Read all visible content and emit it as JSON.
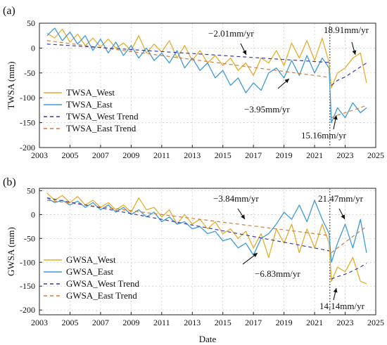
{
  "figure": {
    "xlabel": "Date"
  },
  "colors": {
    "west": "#e6ac2c",
    "east": "#3d9ad8",
    "west_trend": "#3a3aa8",
    "east_trend": "#d27a3a",
    "grid": "#c8c8c8",
    "dashed_vline": "#555555"
  },
  "chart_data": [
    {
      "type": "line",
      "panel": "(a)",
      "ylabel": "TWSA (mm)",
      "xlim": [
        2003,
        2025
      ],
      "ylim": [
        -200,
        50
      ],
      "xticks": [
        2003,
        2005,
        2007,
        2009,
        2011,
        2013,
        2015,
        2017,
        2019,
        2021,
        2023,
        2025
      ],
      "yticks": [
        50,
        0,
        -50,
        -100,
        -150,
        -200
      ],
      "break_year": 2022,
      "legend": [
        "TWSA_West",
        "TWSA_East",
        "TWSA_West Trend",
        "TWSA_East Trend"
      ],
      "legend_position": "lower-left",
      "annotations": [
        "−2.01mm/yr",
        "−3.95mm/yr",
        "18.91mm/yr",
        "15.16mm/yr"
      ],
      "grid": true,
      "x": [
        2003.5,
        2004.0,
        2004.5,
        2005.0,
        2005.5,
        2006.0,
        2006.5,
        2007.0,
        2007.5,
        2008.0,
        2008.5,
        2009.0,
        2009.5,
        2010.0,
        2010.5,
        2011.0,
        2011.5,
        2012.0,
        2012.5,
        2013.0,
        2013.5,
        2014.0,
        2014.5,
        2015.0,
        2015.5,
        2016.0,
        2016.5,
        2017.0,
        2017.5,
        2018.0,
        2018.5,
        2019.0,
        2019.5,
        2020.0,
        2020.5,
        2021.0,
        2021.5,
        2021.95,
        2022.1,
        2022.5,
        2023.0,
        2023.5,
        2024.0,
        2024.4
      ],
      "series": [
        {
          "name": "TWSA_West",
          "values": [
            30,
            20,
            38,
            12,
            28,
            5,
            20,
            2,
            18,
            0,
            10,
            -5,
            25,
            -10,
            8,
            -8,
            15,
            -20,
            5,
            -25,
            -5,
            -30,
            -15,
            -35,
            -20,
            -45,
            -30,
            -55,
            -20,
            -30,
            -5,
            -35,
            10,
            -20,
            15,
            -25,
            20,
            -30,
            -80,
            -50,
            -40,
            -20,
            -10,
            -70
          ]
        },
        {
          "name": "TWSA_East",
          "values": [
            25,
            40,
            15,
            32,
            8,
            25,
            -5,
            18,
            -10,
            12,
            -15,
            5,
            -20,
            0,
            -25,
            -10,
            -30,
            -5,
            -40,
            -20,
            -45,
            -30,
            -60,
            -45,
            -75,
            -60,
            -90,
            -70,
            -85,
            -50,
            -40,
            -60,
            -25,
            -55,
            -15,
            -50,
            -20,
            -40,
            -150,
            -120,
            -140,
            -110,
            -130,
            -120
          ]
        },
        {
          "name": "TWSA_West Trend",
          "values": [
            8,
            7,
            6,
            5,
            4,
            3,
            2,
            1,
            0,
            -1,
            -2,
            -3,
            -4,
            -5,
            -6,
            -7,
            -8,
            -9,
            -10,
            -11,
            -12,
            -13,
            -14,
            -15,
            -16,
            -17,
            -18,
            -19,
            -20,
            -21,
            -22,
            -23,
            -24,
            -25,
            -26,
            -27,
            -28,
            -29,
            -75,
            -65,
            -58,
            -48,
            -38,
            -30
          ]
        },
        {
          "name": "TWSA_East Trend",
          "values": [
            15,
            13,
            11,
            9,
            7,
            5,
            3,
            1,
            -1,
            -3,
            -5,
            -7,
            -9,
            -11,
            -13,
            -15,
            -17,
            -19,
            -21,
            -23,
            -25,
            -27,
            -29,
            -31,
            -33,
            -35,
            -37,
            -39,
            -41,
            -43,
            -45,
            -47,
            -49,
            -51,
            -53,
            -55,
            -57,
            -59,
            -140,
            -135,
            -130,
            -125,
            -120,
            -115
          ]
        }
      ]
    },
    {
      "type": "line",
      "panel": "(b)",
      "ylabel": "GWSA (mm)",
      "xlim": [
        2003,
        2025
      ],
      "ylim": [
        -210,
        55
      ],
      "xticks": [
        2003,
        2005,
        2007,
        2009,
        2011,
        2013,
        2015,
        2017,
        2019,
        2021,
        2023,
        2025
      ],
      "yticks": [
        50,
        0,
        -50,
        -100,
        -150,
        -200
      ],
      "break_year": 2022,
      "legend": [
        "GWSA_West",
        "GWSA_East",
        "GWSA_West Trend",
        "GWSA_East Trend"
      ],
      "legend_position": "lower-left",
      "annotations": [
        "−3.84mm/yr",
        "−6.83mm/yr",
        "21.47mm/yr",
        "14.14mm/yr"
      ],
      "grid": true,
      "x": [
        2003.5,
        2004.0,
        2004.5,
        2005.0,
        2005.5,
        2006.0,
        2006.5,
        2007.0,
        2007.5,
        2008.0,
        2008.5,
        2009.0,
        2009.5,
        2010.0,
        2010.5,
        2011.0,
        2011.5,
        2012.0,
        2012.5,
        2013.0,
        2013.5,
        2014.0,
        2014.5,
        2015.0,
        2015.5,
        2016.0,
        2016.5,
        2017.0,
        2017.5,
        2018.0,
        2018.5,
        2019.0,
        2019.5,
        2020.0,
        2020.5,
        2021.0,
        2021.5,
        2021.95,
        2022.1,
        2022.5,
        2023.0,
        2023.5,
        2024.0,
        2024.4
      ],
      "series": [
        {
          "name": "GWSA_West",
          "values": [
            45,
            30,
            40,
            25,
            38,
            20,
            30,
            15,
            25,
            10,
            20,
            5,
            35,
            10,
            15,
            -5,
            10,
            -20,
            0,
            -20,
            -10,
            -30,
            -15,
            -40,
            -30,
            -50,
            -35,
            -70,
            -40,
            -90,
            -30,
            -60,
            -20,
            -80,
            -30,
            -70,
            -20,
            -60,
            -140,
            -110,
            -120,
            -90,
            -140,
            -145
          ]
        },
        {
          "name": "GWSA_East",
          "values": [
            35,
            25,
            30,
            20,
            28,
            15,
            25,
            10,
            20,
            5,
            15,
            0,
            10,
            -5,
            5,
            -15,
            -5,
            -20,
            -15,
            -30,
            -25,
            -40,
            -35,
            -55,
            -50,
            -70,
            -60,
            -85,
            -50,
            -40,
            -20,
            5,
            -10,
            20,
            -15,
            30,
            -10,
            -40,
            -100,
            -60,
            -20,
            -70,
            -10,
            -80
          ]
        },
        {
          "name": "GWSA_West Trend",
          "values": [
            35,
            32,
            29,
            26,
            23,
            20,
            17,
            14,
            11,
            8,
            5,
            2,
            -1,
            -4,
            -7,
            -10,
            -13,
            -16,
            -19,
            -22,
            -25,
            -28,
            -31,
            -34,
            -37,
            -40,
            -43,
            -46,
            -49,
            -52,
            -55,
            -58,
            -61,
            -64,
            -67,
            -70,
            -73,
            -76,
            -135,
            -130,
            -125,
            -118,
            -110,
            -102
          ]
        },
        {
          "name": "GWSA_East Trend",
          "values": [
            30,
            28,
            26,
            24,
            22,
            20,
            18,
            16,
            14,
            12,
            10,
            8,
            6,
            4,
            2,
            0,
            -2,
            -4,
            -6,
            -8,
            -10,
            -12,
            -14,
            -16,
            -18,
            -20,
            -22,
            -24,
            -26,
            -28,
            -30,
            -32,
            -34,
            -36,
            -38,
            -40,
            -42,
            -44,
            -80,
            -70,
            -58,
            -46,
            -34,
            -25
          ]
        }
      ]
    }
  ]
}
